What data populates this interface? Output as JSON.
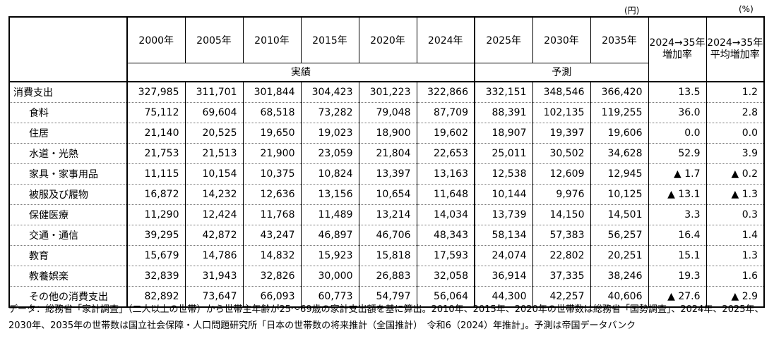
{
  "units": {
    "yen": "(円)",
    "percent": "(%)"
  },
  "header": {
    "years": [
      "2000年",
      "2005年",
      "2010年",
      "2015年",
      "2020年",
      "2024年",
      "2025年",
      "2030年",
      "2035年"
    ],
    "rate_total": "2024→35年増加率",
    "rate_avg": "2024→35年平均増加率",
    "actual_label": "実績",
    "forecast_label": "予測"
  },
  "rows": [
    {
      "label": "消費支出",
      "values": [
        "327,985",
        "311,701",
        "301,844",
        "304,423",
        "301,223",
        "322,866",
        "332,151",
        "348,546",
        "366,420"
      ],
      "rate_total": "13.5",
      "rate_avg": "1.2"
    },
    {
      "label": "食料",
      "values": [
        "75,112",
        "69,604",
        "68,518",
        "73,282",
        "79,048",
        "87,709",
        "88,391",
        "102,135",
        "119,255"
      ],
      "rate_total": "36.0",
      "rate_avg": "2.8"
    },
    {
      "label": "住居",
      "values": [
        "21,140",
        "20,525",
        "19,650",
        "19,023",
        "18,900",
        "19,602",
        "18,907",
        "19,397",
        "19,606"
      ],
      "rate_total": "0.0",
      "rate_avg": "0.0"
    },
    {
      "label": "水道・光熱",
      "values": [
        "21,753",
        "21,513",
        "21,900",
        "23,059",
        "21,804",
        "22,653",
        "25,011",
        "30,502",
        "34,628"
      ],
      "rate_total": "52.9",
      "rate_avg": "3.9"
    },
    {
      "label": "家具・家事用品",
      "values": [
        "11,115",
        "10,154",
        "10,375",
        "10,824",
        "13,397",
        "13,163",
        "12,538",
        "12,609",
        "12,945"
      ],
      "rate_total": "▲ 1.7",
      "rate_avg": "▲ 0.2"
    },
    {
      "label": "被服及び履物",
      "values": [
        "16,872",
        "14,232",
        "12,636",
        "13,156",
        "10,654",
        "11,648",
        "10,144",
        "9,976",
        "10,125"
      ],
      "rate_total": "▲ 13.1",
      "rate_avg": "▲ 1.3"
    },
    {
      "label": "保健医療",
      "values": [
        "11,290",
        "12,424",
        "11,768",
        "11,489",
        "13,214",
        "14,034",
        "13,739",
        "14,150",
        "14,501"
      ],
      "rate_total": "3.3",
      "rate_avg": "0.3"
    },
    {
      "label": "交通・通信",
      "values": [
        "39,295",
        "42,872",
        "43,247",
        "46,897",
        "46,706",
        "48,343",
        "58,134",
        "57,383",
        "56,257"
      ],
      "rate_total": "16.4",
      "rate_avg": "1.4"
    },
    {
      "label": "教育",
      "values": [
        "15,679",
        "14,786",
        "14,832",
        "15,923",
        "15,818",
        "17,593",
        "24,074",
        "22,802",
        "20,251"
      ],
      "rate_total": "15.1",
      "rate_avg": "1.3"
    },
    {
      "label": "教養娯楽",
      "values": [
        "32,839",
        "31,943",
        "32,826",
        "30,000",
        "26,883",
        "32,058",
        "36,914",
        "37,335",
        "38,246"
      ],
      "rate_total": "19.3",
      "rate_avg": "1.6"
    },
    {
      "label": "その他の消費支出",
      "values": [
        "82,892",
        "73,647",
        "66,093",
        "60,773",
        "54,797",
        "56,064",
        "44,300",
        "42,257",
        "40,606"
      ],
      "rate_total": "▲ 27.6",
      "rate_avg": "▲ 2.9"
    }
  ],
  "footnote": "データ：総務省「家計調査」（二人以上の世帯）から世帯主年齢が25～69歳の家計支出額を基に算出。2010年、2015年、2020年の世帯数は総務省「国勢調査」、2024年、2025年、2030年、2035年の世帯数は国立社会保障・人口問題研究所「日本の世帯数の将来推計（全国推計）　令和6（2024）年推計」。予測は帝国データバンク"
}
